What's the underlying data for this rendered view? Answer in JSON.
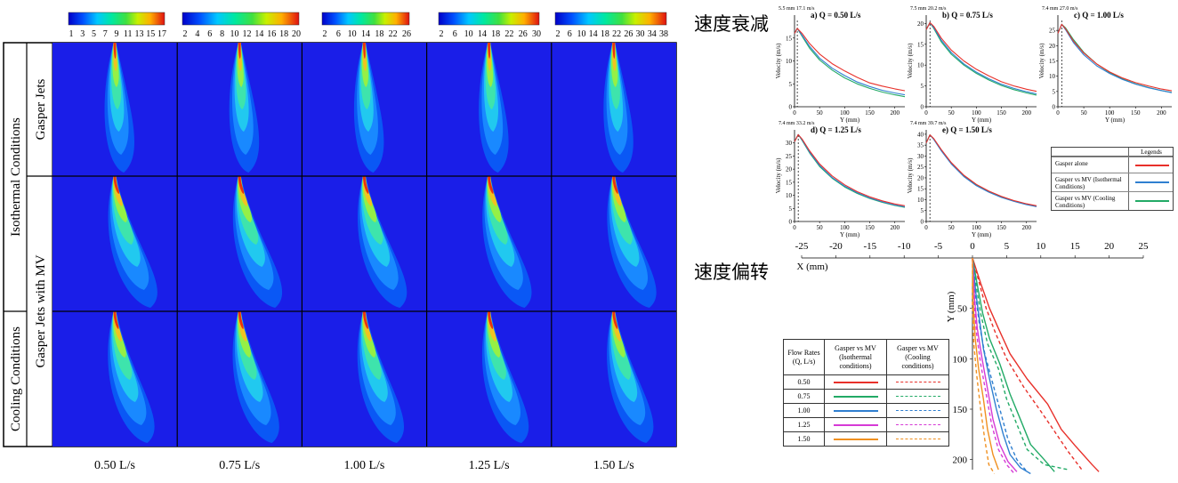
{
  "headings": {
    "decay": "速度衰减",
    "deflection": "速度偏转"
  },
  "contour_panel": {
    "row_group_labels": [
      "Isothermal Conditions",
      "Cooling Conditions"
    ],
    "row_labels": [
      "Gasper Jets",
      "Gasper Jets with MV"
    ],
    "column_labels": [
      "0.50 L/s",
      "0.75 L/s",
      "1.00 L/s",
      "1.25 L/s",
      "1.50 L/s"
    ],
    "colorbars": [
      {
        "ticks": [
          "1",
          "3",
          "5",
          "7",
          "9",
          "11",
          "13",
          "15",
          "17"
        ]
      },
      {
        "ticks": [
          "2",
          "4",
          "6",
          "8",
          "10",
          "12",
          "14",
          "16",
          "18",
          "20"
        ]
      },
      {
        "ticks": [
          "2",
          "6",
          "10",
          "14",
          "18",
          "22",
          "26"
        ]
      },
      {
        "ticks": [
          "2",
          "6",
          "10",
          "14",
          "18",
          "22",
          "26",
          "30"
        ]
      },
      {
        "ticks": [
          "2",
          "6",
          "10",
          "14",
          "18",
          "22",
          "26",
          "30",
          "34",
          "38"
        ]
      }
    ]
  },
  "chart_data": [
    {
      "type": "line",
      "title": "a) Q = 0.50 L/s",
      "annotation": "5.5 mm 17.1 m/s",
      "xlabel": "Y (mm)",
      "ylabel": "Velocity (m/s)",
      "xlim": [
        0,
        220
      ],
      "ylim": [
        0,
        20
      ],
      "xticks": [
        0,
        50,
        100,
        150,
        200
      ],
      "yticks": [
        0,
        5,
        10,
        15
      ],
      "x": [
        0,
        5.5,
        15,
        30,
        50,
        75,
        100,
        125,
        150,
        175,
        200,
        220
      ],
      "series": [
        {
          "name": "Gasper alone",
          "color": "#e8302a",
          "values": [
            16.0,
            17.1,
            16.0,
            13.8,
            11.5,
            9.4,
            7.8,
            6.4,
            5.2,
            4.5,
            3.9,
            3.5
          ]
        },
        {
          "name": "Gasper vs MV (Isothermal Conditions)",
          "color": "#2f7fd0",
          "values": [
            16.0,
            17.1,
            15.6,
            13.2,
            10.6,
            8.4,
            6.8,
            5.4,
            4.4,
            3.6,
            3.0,
            2.6
          ]
        },
        {
          "name": "Gasper vs MV (Cooling Conditions)",
          "color": "#22aa66",
          "values": [
            16.0,
            17.1,
            15.4,
            12.8,
            10.2,
            8.0,
            6.3,
            5.0,
            4.0,
            3.2,
            2.6,
            2.2
          ]
        }
      ]
    },
    {
      "type": "line",
      "title": "b) Q = 0.75 L/s",
      "annotation": "7.5 mm 20.2 m/s",
      "xlabel": "Y (mm)",
      "ylabel": "Velocity (m/s)",
      "xlim": [
        0,
        220
      ],
      "ylim": [
        0,
        22
      ],
      "xticks": [
        0,
        50,
        100,
        150,
        200
      ],
      "yticks": [
        0,
        5,
        10,
        15,
        20
      ],
      "x": [
        0,
        7.5,
        15,
        30,
        50,
        75,
        100,
        125,
        150,
        175,
        200,
        220
      ],
      "series": [
        {
          "name": "Gasper alone",
          "color": "#e8302a",
          "values": [
            18.5,
            20.2,
            19.3,
            16.5,
            13.6,
            11.0,
            9.0,
            7.4,
            6.0,
            5.0,
            4.2,
            3.7
          ]
        },
        {
          "name": "Gasper vs MV (Isothermal Conditions)",
          "color": "#2f7fd0",
          "values": [
            18.5,
            20.2,
            19.0,
            16.0,
            13.0,
            10.3,
            8.3,
            6.7,
            5.4,
            4.4,
            3.6,
            3.1
          ]
        },
        {
          "name": "Gasper vs MV (Cooling Conditions)",
          "color": "#22aa66",
          "values": [
            18.5,
            20.2,
            18.8,
            15.6,
            12.6,
            10.0,
            8.0,
            6.4,
            5.1,
            4.1,
            3.3,
            2.8
          ]
        }
      ]
    },
    {
      "type": "line",
      "title": "c) Q = 1.00 L/s",
      "annotation": "7.4 mm 27.0 m/s",
      "xlabel": "Y (mm)",
      "ylabel": "Velocity (m/s)",
      "xlim": [
        0,
        220
      ],
      "ylim": [
        0,
        30
      ],
      "xticks": [
        0,
        50,
        100,
        150,
        200
      ],
      "yticks": [
        0,
        5,
        10,
        15,
        20,
        25
      ],
      "x": [
        0,
        7.4,
        15,
        30,
        50,
        75,
        100,
        125,
        150,
        175,
        200,
        220
      ],
      "series": [
        {
          "name": "Gasper alone",
          "color": "#e8302a",
          "values": [
            24.0,
            27.0,
            25.5,
            21.5,
            17.6,
            14.0,
            11.4,
            9.4,
            7.9,
            6.8,
            5.8,
            5.2
          ]
        },
        {
          "name": "Gasper vs MV (Isothermal Conditions)",
          "color": "#2f7fd0",
          "values": [
            24.0,
            27.0,
            25.2,
            21.0,
            17.0,
            13.4,
            10.9,
            8.9,
            7.4,
            6.2,
            5.3,
            4.6
          ]
        },
        {
          "name": "Gasper vs MV (Cooling Conditions)",
          "color": "#22aa66",
          "values": [
            24.0,
            27.0,
            25.8,
            22.0,
            17.8,
            14.0,
            11.2,
            9.1,
            7.5,
            6.3,
            5.3,
            4.7
          ]
        }
      ]
    },
    {
      "type": "line",
      "title": "d) Q = 1.25 L/s",
      "annotation": "7.4 mm 33.2 m/s",
      "xlabel": "Y (mm)",
      "ylabel": "Velocity (m/s)",
      "xlim": [
        0,
        220
      ],
      "ylim": [
        0,
        35
      ],
      "xticks": [
        0,
        50,
        100,
        150,
        200
      ],
      "yticks": [
        0,
        5,
        10,
        15,
        20,
        25,
        30
      ],
      "x": [
        0,
        7.4,
        15,
        30,
        50,
        75,
        100,
        125,
        150,
        175,
        200,
        220
      ],
      "series": [
        {
          "name": "Gasper alone",
          "color": "#e8302a",
          "values": [
            30.5,
            33.2,
            31.5,
            27.0,
            22.0,
            17.4,
            14.0,
            11.4,
            9.4,
            7.9,
            6.7,
            6.0
          ]
        },
        {
          "name": "Gasper vs MV (Isothermal Conditions)",
          "color": "#2f7fd0",
          "values": [
            30.5,
            33.2,
            31.2,
            26.5,
            21.4,
            16.8,
            13.5,
            11.0,
            9.0,
            7.5,
            6.3,
            5.6
          ]
        },
        {
          "name": "Gasper vs MV (Cooling Conditions)",
          "color": "#22aa66",
          "values": [
            30.5,
            33.2,
            31.0,
            26.2,
            21.0,
            16.5,
            13.2,
            10.7,
            8.8,
            7.3,
            6.1,
            5.4
          ]
        }
      ]
    },
    {
      "type": "line",
      "title": "e) Q = 1.50 L/s",
      "annotation": "7.4 mm 39.7 m/s",
      "xlabel": "Y (mm)",
      "ylabel": "Velocity (m/s)",
      "xlim": [
        0,
        220
      ],
      "ylim": [
        0,
        42
      ],
      "xticks": [
        0,
        50,
        100,
        150,
        200
      ],
      "yticks": [
        0,
        5,
        10,
        15,
        20,
        25,
        30,
        35,
        40
      ],
      "x": [
        0,
        7.4,
        15,
        30,
        50,
        75,
        100,
        125,
        150,
        175,
        200,
        220
      ],
      "series": [
        {
          "name": "Gasper alone",
          "color": "#e8302a",
          "values": [
            36.0,
            39.7,
            38.0,
            33.0,
            27.0,
            21.2,
            17.0,
            13.9,
            11.5,
            9.6,
            8.1,
            7.2
          ]
        },
        {
          "name": "Gasper vs MV (Isothermal Conditions)",
          "color": "#2f7fd0",
          "values": [
            36.0,
            39.7,
            37.6,
            32.4,
            26.4,
            20.6,
            16.4,
            13.4,
            11.0,
            9.2,
            7.7,
            6.8
          ]
        },
        {
          "name": "Gasper vs MV (Cooling Conditions)",
          "color": "#22aa66",
          "values": [
            36.0,
            39.7,
            37.8,
            32.8,
            26.8,
            21.0,
            16.8,
            13.7,
            11.3,
            9.4,
            7.9,
            7.0
          ]
        }
      ]
    },
    {
      "type": "line",
      "xlabel": "X (mm)",
      "ylabel": "Y (mm)",
      "xlim": [
        -25,
        25
      ],
      "ylim": [
        0,
        210
      ],
      "xticks": [
        -25,
        -20,
        -15,
        -10,
        -5,
        0,
        5,
        10,
        15,
        20,
        25
      ],
      "yticks": [
        50,
        100,
        150,
        200
      ],
      "y_inverted": true,
      "series": [
        {
          "name": "0.50 Isothermal",
          "color": "#e8302a",
          "dash": false,
          "points": [
            [
              0,
              0
            ],
            [
              1.2,
              25
            ],
            [
              2.5,
              50
            ],
            [
              3.8,
              70
            ],
            [
              5.5,
              95
            ],
            [
              8,
              120
            ],
            [
              11,
              145
            ],
            [
              13,
              170
            ],
            [
              15,
              186
            ],
            [
              17.5,
              205
            ],
            [
              18.5,
              212
            ]
          ]
        },
        {
          "name": "0.50 Cooling",
          "color": "#e8302a",
          "dash": true,
          "points": [
            [
              0,
              0
            ],
            [
              1,
              25
            ],
            [
              2,
              50
            ],
            [
              3.4,
              75
            ],
            [
              5,
              100
            ],
            [
              7.5,
              128
            ],
            [
              10,
              152
            ],
            [
              12,
              172
            ],
            [
              14,
              192
            ],
            [
              16,
              210
            ]
          ]
        },
        {
          "name": "0.75 Isothermal",
          "color": "#22aa66",
          "dash": false,
          "points": [
            [
              0,
              0
            ],
            [
              0.8,
              30
            ],
            [
              1.5,
              55
            ],
            [
              2.5,
              80
            ],
            [
              4,
              105
            ],
            [
              5.5,
              135
            ],
            [
              7,
              160
            ],
            [
              8.5,
              185
            ],
            [
              10.5,
              200
            ],
            [
              12,
              212
            ]
          ]
        },
        {
          "name": "0.75 Cooling",
          "color": "#22aa66",
          "dash": true,
          "points": [
            [
              0,
              0
            ],
            [
              0.6,
              30
            ],
            [
              1.2,
              55
            ],
            [
              2.2,
              85
            ],
            [
              3.8,
              110
            ],
            [
              5,
              140
            ],
            [
              6.5,
              165
            ],
            [
              8,
              190
            ],
            [
              10.5,
              205
            ],
            [
              14,
              210
            ]
          ]
        },
        {
          "name": "1.00 Isothermal",
          "color": "#2f7fd0",
          "dash": false,
          "points": [
            [
              0,
              0
            ],
            [
              0.5,
              35
            ],
            [
              1,
              60
            ],
            [
              1.6,
              90
            ],
            [
              2.5,
              120
            ],
            [
              3.5,
              150
            ],
            [
              4.5,
              175
            ],
            [
              5.5,
              195
            ],
            [
              7,
              208
            ],
            [
              8.5,
              214
            ]
          ]
        },
        {
          "name": "1.00 Cooling",
          "color": "#2f7fd0",
          "dash": true,
          "points": [
            [
              0,
              0
            ],
            [
              0.4,
              35
            ],
            [
              1,
              65
            ],
            [
              1.8,
              95
            ],
            [
              3,
              125
            ],
            [
              4.2,
              155
            ],
            [
              5.2,
              180
            ],
            [
              6.5,
              200
            ],
            [
              8,
              212
            ]
          ]
        },
        {
          "name": "1.25 Isothermal",
          "color": "#d63ad6",
          "dash": false,
          "points": [
            [
              0,
              0
            ],
            [
              0.3,
              40
            ],
            [
              0.7,
              70
            ],
            [
              1.4,
              100
            ],
            [
              2.2,
              130
            ],
            [
              3,
              160
            ],
            [
              4,
              185
            ],
            [
              5.2,
              202
            ],
            [
              6.5,
              212
            ]
          ]
        },
        {
          "name": "1.25 Cooling",
          "color": "#d63ad6",
          "dash": true,
          "points": [
            [
              0,
              0
            ],
            [
              0.2,
              40
            ],
            [
              0.6,
              75
            ],
            [
              1.2,
              105
            ],
            [
              2,
              135
            ],
            [
              2.8,
              165
            ],
            [
              3.8,
              190
            ],
            [
              5,
              205
            ],
            [
              6,
              213
            ]
          ]
        },
        {
          "name": "1.50 Isothermal",
          "color": "#f09020",
          "dash": false,
          "points": [
            [
              0,
              0
            ],
            [
              0.1,
              45
            ],
            [
              0.4,
              80
            ],
            [
              0.9,
              110
            ],
            [
              1.6,
              140
            ],
            [
              2.2,
              170
            ],
            [
              3,
              195
            ],
            [
              3.8,
              210
            ]
          ]
        },
        {
          "name": "1.50 Cooling",
          "color": "#f09020",
          "dash": true,
          "points": [
            [
              0,
              0
            ],
            [
              0,
              45
            ],
            [
              0.2,
              85
            ],
            [
              0.6,
              115
            ],
            [
              1.2,
              150
            ],
            [
              1.8,
              180
            ],
            [
              2.4,
              205
            ],
            [
              3.2,
              214
            ]
          ]
        }
      ]
    }
  ],
  "decay_legend": {
    "title": "Legends",
    "items": [
      {
        "label": "Gasper alone",
        "color": "#e8302a"
      },
      {
        "label": "Gasper vs MV (Isothermal Conditions)",
        "color": "#2f7fd0"
      },
      {
        "label": "Gasper vs MV (Cooling Conditions)",
        "color": "#22aa66"
      }
    ]
  },
  "flow_table": {
    "headers": [
      "Flow Rates (Q, L/s)",
      "Gasper vs MV (Isothermal conditions)",
      "Gasper vs MV (Cooling conditions)"
    ],
    "rows": [
      {
        "q": "0.50",
        "color": "#e8302a"
      },
      {
        "q": "0.75",
        "color": "#22aa66"
      },
      {
        "q": "1.00",
        "color": "#2f7fd0"
      },
      {
        "q": "1.25",
        "color": "#d63ad6"
      },
      {
        "q": "1.50",
        "color": "#f09020"
      }
    ]
  }
}
